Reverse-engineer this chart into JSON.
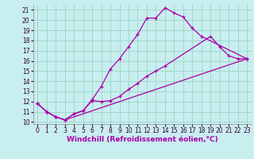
{
  "xlabel": "Windchill (Refroidissement éolien,°C)",
  "bg_color": "#c8eef0",
  "grid_color": "#a0d8c8",
  "line_color": "#aa00aa",
  "xlim": [
    -0.5,
    23.5
  ],
  "ylim": [
    9.8,
    21.5
  ],
  "xticks": [
    0,
    1,
    2,
    3,
    4,
    5,
    6,
    7,
    8,
    9,
    10,
    11,
    12,
    13,
    14,
    15,
    16,
    17,
    18,
    19,
    20,
    21,
    22,
    23
  ],
  "yticks": [
    10,
    11,
    12,
    13,
    14,
    15,
    16,
    17,
    18,
    19,
    20,
    21
  ],
  "line1_x": [
    0,
    1,
    2,
    3,
    4,
    5,
    6,
    7,
    8,
    9,
    10,
    11,
    12,
    13,
    14,
    15,
    16,
    17,
    18,
    23
  ],
  "line1_y": [
    11.8,
    11.0,
    10.5,
    10.2,
    10.8,
    11.1,
    12.2,
    13.5,
    15.2,
    16.2,
    17.4,
    18.6,
    20.2,
    20.2,
    21.2,
    20.7,
    20.3,
    19.2,
    18.4,
    16.2
  ],
  "line2_x": [
    0,
    1,
    2,
    3,
    4,
    5,
    6,
    7,
    8,
    9,
    10,
    11,
    12,
    13,
    14,
    19,
    20,
    21,
    22,
    23
  ],
  "line2_y": [
    11.8,
    11.0,
    10.5,
    10.2,
    10.8,
    11.1,
    12.1,
    12.0,
    12.1,
    12.5,
    13.2,
    13.8,
    14.5,
    15.0,
    15.5,
    18.4,
    17.4,
    16.5,
    16.2,
    16.2
  ],
  "line3_x": [
    0,
    1,
    2,
    3,
    23
  ],
  "line3_y": [
    11.8,
    11.0,
    10.5,
    10.2,
    16.2
  ],
  "tick_fontsize": 5.5,
  "label_fontsize": 6.5
}
